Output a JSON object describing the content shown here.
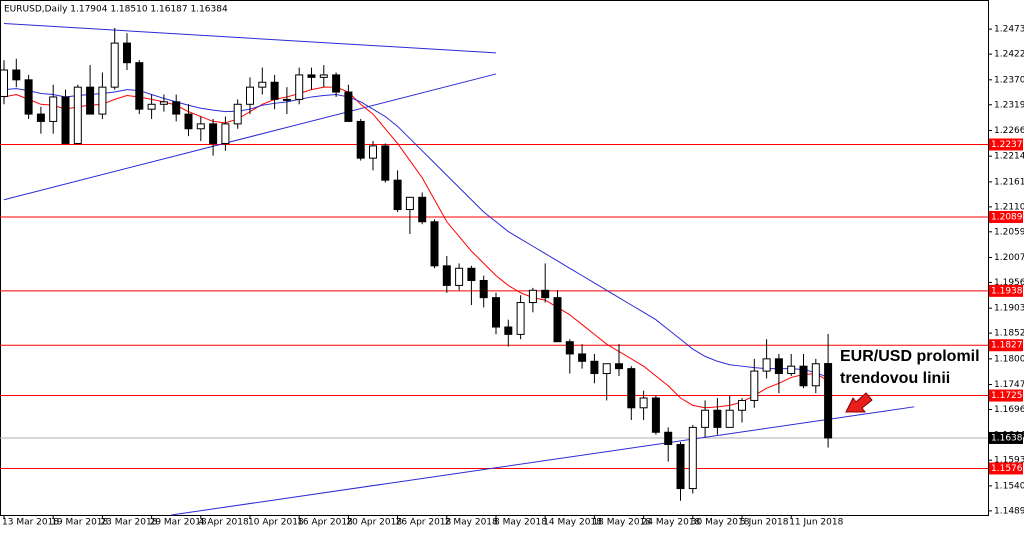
{
  "chart_data": {
    "type": "candlestick",
    "title": "EURUSD,Daily 1.17904 1.18510 1.16187 1.16384",
    "annotation": [
      "EUR/USD prolomil",
      "trendovou linii"
    ],
    "x": [
      "13 Mar 2018",
      null,
      null,
      null,
      "19 Mar 2018",
      null,
      null,
      null,
      "23 Mar 2018",
      null,
      null,
      null,
      "29 Mar 2018",
      null,
      null,
      null,
      "4 Apr 2018",
      null,
      null,
      null,
      "10 Apr 2018",
      null,
      null,
      null,
      "16 Apr 2018",
      null,
      null,
      null,
      "20 Apr 2018",
      null,
      null,
      null,
      "26 Apr 2018",
      null,
      null,
      null,
      "2 May 2018",
      null,
      null,
      null,
      "8 May 2018",
      null,
      null,
      null,
      "14 May 2018",
      null,
      null,
      null,
      "18 May 2018",
      null,
      null,
      null,
      "24 May 2018",
      null,
      null,
      null,
      "30 May 2018",
      null,
      null,
      null,
      "5 Jun 2018",
      null,
      null,
      null,
      "11 Jun 2018",
      null,
      null,
      null
    ],
    "open": [
      1.2336,
      1.239,
      1.237,
      1.23,
      1.2285,
      1.2335,
      1.224,
      1.2355,
      1.23,
      1.2355,
      1.2445,
      1.2405,
      1.231,
      1.232,
      1.2325,
      1.23,
      1.227,
      1.228,
      1.224,
      1.228,
      1.232,
      1.2355,
      1.2365,
      1.233,
      1.233,
      1.238,
      1.2375,
      1.238,
      1.2345,
      1.2285,
      1.221,
      1.2235,
      1.2165,
      1.2105,
      1.213,
      1.208,
      1.199,
      1.195,
      1.1985,
      1.196,
      1.1925,
      1.1865,
      1.185,
      1.1915,
      1.194,
      1.1925,
      1.1835,
      1.181,
      1.1795,
      1.177,
      1.179,
      1.178,
      1.17,
      1.172,
      1.165,
      1.1625,
      1.1535,
      1.166,
      1.1695,
      1.166,
      1.1695,
      1.1715,
      1.1775,
      1.18,
      1.177,
      1.1785,
      1.1745,
      1.17904
    ],
    "high": [
      1.241,
      1.2413,
      1.238,
      1.2315,
      1.236,
      1.235,
      1.236,
      1.24,
      1.2385,
      1.2476,
      1.2465,
      1.241,
      1.234,
      1.234,
      1.234,
      1.232,
      1.2295,
      1.229,
      1.2295,
      1.233,
      1.2375,
      1.2395,
      1.238,
      1.2355,
      1.2395,
      1.2395,
      1.24,
      1.2385,
      1.236,
      1.229,
      1.2245,
      1.224,
      1.2185,
      1.213,
      1.214,
      1.2085,
      1.201,
      1.1995,
      1.199,
      1.197,
      1.1935,
      1.188,
      1.193,
      1.1945,
      1.1995,
      1.194,
      1.184,
      1.183,
      1.181,
      1.179,
      1.183,
      1.1785,
      1.1735,
      1.1725,
      1.166,
      1.163,
      1.1665,
      1.1715,
      1.172,
      1.1725,
      1.172,
      1.18,
      1.184,
      1.181,
      1.181,
      1.181,
      1.18,
      1.1851
    ],
    "low": [
      1.232,
      1.2355,
      1.229,
      1.226,
      1.226,
      1.224,
      1.2238,
      1.23,
      1.229,
      1.235,
      1.239,
      1.23,
      1.229,
      1.2305,
      1.2285,
      1.2255,
      1.2245,
      1.2215,
      1.2225,
      1.227,
      1.23,
      1.234,
      1.231,
      1.23,
      1.232,
      1.235,
      1.2355,
      1.2335,
      1.2285,
      1.2205,
      1.2185,
      1.216,
      1.21,
      1.2055,
      1.2075,
      1.1985,
      1.1935,
      1.194,
      1.191,
      1.1905,
      1.185,
      1.1825,
      1.184,
      1.1895,
      1.1915,
      1.1835,
      1.177,
      1.178,
      1.175,
      1.1715,
      1.1765,
      1.1675,
      1.1675,
      1.1645,
      1.159,
      1.151,
      1.1525,
      1.164,
      1.1645,
      1.166,
      1.167,
      1.17,
      1.176,
      1.173,
      1.1765,
      1.174,
      1.173,
      1.16187
    ],
    "close": [
      1.239,
      1.237,
      1.23,
      1.2285,
      1.2335,
      1.224,
      1.2355,
      1.23,
      1.2355,
      1.2445,
      1.2405,
      1.231,
      1.232,
      1.2325,
      1.23,
      1.227,
      1.228,
      1.224,
      1.228,
      1.232,
      1.2355,
      1.2365,
      1.233,
      1.233,
      1.238,
      1.2375,
      1.238,
      1.2345,
      1.2285,
      1.221,
      1.2235,
      1.2165,
      1.2105,
      1.213,
      1.208,
      1.199,
      1.195,
      1.1985,
      1.196,
      1.1925,
      1.1865,
      1.185,
      1.1915,
      1.194,
      1.1925,
      1.1835,
      1.181,
      1.1795,
      1.177,
      1.179,
      1.178,
      1.17,
      1.172,
      1.165,
      1.1625,
      1.1535,
      1.166,
      1.1695,
      1.166,
      1.1695,
      1.1715,
      1.1775,
      1.18,
      1.177,
      1.1785,
      1.1745,
      1.179,
      1.16384
    ],
    "series": [
      {
        "color": "#ff0000",
        "values": [
          1.2335,
          1.234,
          1.233,
          1.232,
          1.2318,
          1.231,
          1.2315,
          1.2318,
          1.232,
          1.233,
          1.2338,
          1.2335,
          1.233,
          1.2325,
          1.2318,
          1.2305,
          1.2295,
          1.2285,
          1.2282,
          1.229,
          1.2305,
          1.232,
          1.233,
          1.2335,
          1.2342,
          1.235,
          1.2355,
          1.2355,
          1.2345,
          1.232,
          1.23,
          1.227,
          1.224,
          1.2205,
          1.217,
          1.2125,
          1.208,
          1.205,
          1.202,
          1.1995,
          1.197,
          1.195,
          1.1935,
          1.1925,
          1.192,
          1.1905,
          1.189,
          1.187,
          1.185,
          1.183,
          1.1815,
          1.18,
          1.1785,
          1.1765,
          1.1745,
          1.172,
          1.1705,
          1.17,
          1.1702,
          1.1705,
          1.1712,
          1.1725,
          1.174,
          1.175,
          1.1762,
          1.1768,
          1.177,
          1.1755
        ]
      },
      {
        "color": "#2b2bd6",
        "values": [
          1.235,
          1.2352,
          1.2348,
          1.2342,
          1.234,
          1.2335,
          1.2338,
          1.234,
          1.2342,
          1.2345,
          1.235,
          1.2348,
          1.234,
          1.2332,
          1.2325,
          1.2318,
          1.2312,
          1.2308,
          1.2305,
          1.2306,
          1.231,
          1.2318,
          1.2322,
          1.2325,
          1.233,
          1.2335,
          1.2338,
          1.234,
          1.2335,
          1.2325,
          1.231,
          1.2295,
          1.2275,
          1.225,
          1.2225,
          1.22,
          1.2175,
          1.215,
          1.2125,
          1.21,
          1.208,
          1.206,
          1.2045,
          1.203,
          1.2015,
          1.2,
          1.1985,
          1.197,
          1.1955,
          1.194,
          1.1925,
          1.191,
          1.1895,
          1.188,
          1.186,
          1.184,
          1.182,
          1.1805,
          1.1795,
          1.1788,
          1.1785,
          1.1782,
          1.178,
          1.178,
          1.178,
          1.1778,
          1.1772,
          1.1762
        ]
      }
    ],
    "trend_lines": [
      {
        "color": "#2b2bd6",
        "x": [
          0,
          40
        ],
        "y": [
          1.2485,
          1.2425
        ]
      },
      {
        "color": "#2b2bd6",
        "x": [
          0,
          40
        ],
        "y": [
          1.2125,
          1.2382
        ]
      },
      {
        "color": "#2b2bd6",
        "x": [
          13.6,
          74
        ],
        "y": [
          1.1481,
          1.1702
        ]
      }
    ],
    "levels": [
      {
        "value": 1.22379,
        "label": "1.22379"
      },
      {
        "value": 1.20898,
        "label": "1.20898"
      },
      {
        "value": 1.19389,
        "label": "1.19389"
      },
      {
        "value": 1.18278,
        "label": "1.18278"
      },
      {
        "value": 1.1725,
        "label": "1.17250"
      },
      {
        "value": 1.15761,
        "label": "1.15761"
      }
    ],
    "level_color": "#ff0000",
    "current_price": {
      "value": 1.16384,
      "label": "1.16384"
    },
    "ylim": [
      1.1481,
      1.2531
    ],
    "yticks": [
      {
        "value": 1.24735,
        "label": "1.24735"
      },
      {
        "value": 1.24225,
        "label": "1.24225"
      },
      {
        "value": 1.237,
        "label": "1.23700"
      },
      {
        "value": 1.2319,
        "label": "1.23190"
      },
      {
        "value": 1.22665,
        "label": "1.22665"
      },
      {
        "value": 1.2214,
        "label": "1.22140"
      },
      {
        "value": 1.21615,
        "label": "1.21615"
      },
      {
        "value": 1.21105,
        "label": "1.21105"
      },
      {
        "value": 1.20595,
        "label": "1.20595"
      },
      {
        "value": 1.2007,
        "label": "1.20070"
      },
      {
        "value": 1.1956,
        "label": "1.19560"
      },
      {
        "value": 1.19035,
        "label": "1.19035"
      },
      {
        "value": 1.18525,
        "label": "1.18525"
      },
      {
        "value": 1.18,
        "label": "1.18000"
      },
      {
        "value": 1.17475,
        "label": "1.17475"
      },
      {
        "value": 1.16965,
        "label": "1.16965"
      },
      {
        "value": 1.1644,
        "label": "1.16440"
      },
      {
        "value": 1.1593,
        "label": "1.15930"
      },
      {
        "value": 1.15405,
        "label": "1.15405"
      },
      {
        "value": 1.14895,
        "label": "1.14895"
      }
    ]
  }
}
